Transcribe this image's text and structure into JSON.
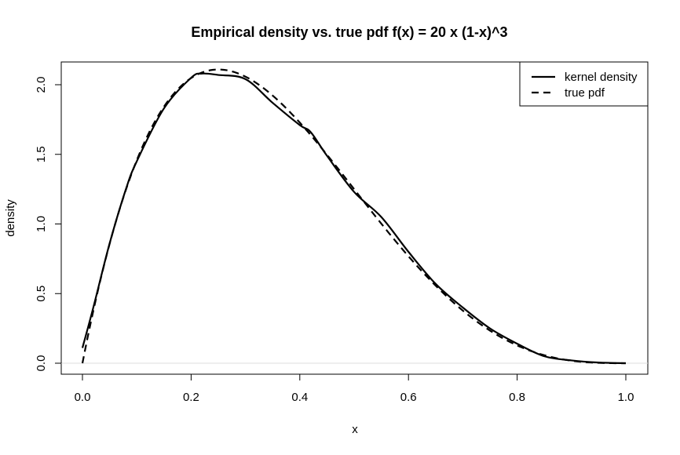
{
  "chart_data": {
    "type": "line",
    "title": "Empirical density vs. true pdf  f(x) = 20 x (1-x)^3",
    "xlabel": "x",
    "ylabel": "density",
    "xlim": [
      0.0,
      1.0
    ],
    "ylim": [
      0.0,
      2.1
    ],
    "x_ticks": [
      "0.0",
      "0.2",
      "0.4",
      "0.6",
      "0.8",
      "1.0"
    ],
    "y_ticks": [
      "0.0",
      "0.5",
      "1.0",
      "1.5",
      "2.0"
    ],
    "grid": false,
    "legend_position": "top-right",
    "reference_line": {
      "y": 0,
      "color": "#dddddd"
    },
    "series": [
      {
        "name": "kernel density",
        "line_style": "solid",
        "color": "#000000",
        "x": [
          0.0,
          0.02,
          0.05,
          0.08,
          0.1,
          0.15,
          0.2,
          0.22,
          0.25,
          0.3,
          0.35,
          0.4,
          0.42,
          0.45,
          0.5,
          0.55,
          0.6,
          0.65,
          0.7,
          0.75,
          0.8,
          0.85,
          0.9,
          0.95,
          1.0
        ],
        "y": [
          0.11,
          0.4,
          0.86,
          1.25,
          1.45,
          1.83,
          2.05,
          2.08,
          2.07,
          2.04,
          1.87,
          1.71,
          1.66,
          1.49,
          1.23,
          1.05,
          0.8,
          0.57,
          0.4,
          0.25,
          0.14,
          0.05,
          0.02,
          0.005,
          0.0
        ]
      },
      {
        "name": "true pdf",
        "line_style": "dashed",
        "color": "#000000",
        "function": "20*x*(1-x)^3"
      }
    ]
  }
}
